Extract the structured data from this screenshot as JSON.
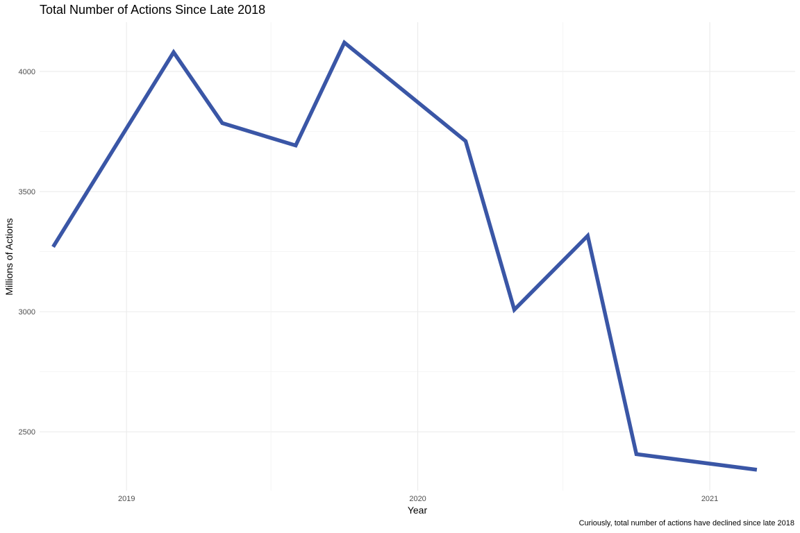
{
  "chart_data": {
    "type": "line",
    "title": "Total Number of Actions Since Late 2018",
    "xlabel": "Year",
    "ylabel": "Millions of Actions",
    "caption": "Curiously, total number of actions have declined since late 2018",
    "x": [
      "2018-10-01",
      "2019-03-01",
      "2019-05-01",
      "2019-08-01",
      "2019-10-01",
      "2020-03-01",
      "2020-05-01",
      "2020-08-01",
      "2020-10-01",
      "2021-03-01"
    ],
    "series": [
      {
        "values": [
          3270,
          4080,
          3785,
          3692,
          4120,
          3710,
          3008,
          3316,
          2407,
          2342
        ]
      }
    ],
    "xticks": [
      "2019",
      "2020",
      "2021"
    ],
    "yticks": [
      2500,
      3000,
      3500,
      4000
    ],
    "ylim": [
      2255,
      4205
    ],
    "xlim": [
      "2018-09-14",
      "2021-04-18"
    ],
    "grid": true,
    "line_color": "#3a56a6"
  }
}
